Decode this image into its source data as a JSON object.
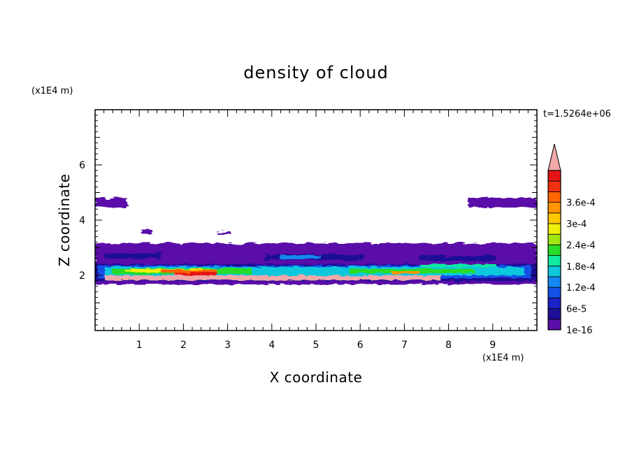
{
  "chart_data": {
    "type": "heatmap",
    "title": "density of cloud",
    "xlabel": "X coordinate",
    "ylabel": "Z coordinate",
    "x_unit": "(x1E4 m)",
    "z_unit": "(x1E4 m)",
    "time_label": "t=1.5264e+06",
    "xlim": [
      0,
      10
    ],
    "ylim": [
      0,
      8
    ],
    "x_ticks": [
      "1",
      "2",
      "3",
      "4",
      "5",
      "6",
      "7",
      "8",
      "9"
    ],
    "y_ticks": [
      "2",
      "4",
      "6"
    ],
    "colorbar": {
      "labels": [
        "1e-16",
        "6e-5",
        "1.2e-4",
        "1.8e-4",
        "2.4e-4",
        "3e-4",
        "3.6e-4"
      ],
      "colors": [
        "#5a0ea8",
        "#1e1096",
        "#1a22c8",
        "#1450e6",
        "#1488f0",
        "#10c8dc",
        "#10e8a0",
        "#28dc28",
        "#a0e614",
        "#f0f00a",
        "#ffc800",
        "#ff9600",
        "#ff6400",
        "#f03214",
        "#e61414",
        "#f0a8a8"
      ]
    },
    "layers": [
      {
        "name": "upper cloud band left",
        "x": [
          0,
          1.2
        ],
        "z": [
          4.4,
          4.8
        ],
        "level": "1e-16"
      },
      {
        "name": "upper cloud band right",
        "x": [
          8.4,
          10
        ],
        "z": [
          4.4,
          4.8
        ],
        "level": "1e-16"
      },
      {
        "name": "mid cloud band",
        "x": [
          0,
          10
        ],
        "z": [
          2.5,
          3.2
        ],
        "level": "1e-16"
      },
      {
        "name": "dense cloud layer",
        "x": [
          0,
          10
        ],
        "z": [
          1.6,
          2.5
        ],
        "level": "3.6e-4"
      }
    ]
  }
}
